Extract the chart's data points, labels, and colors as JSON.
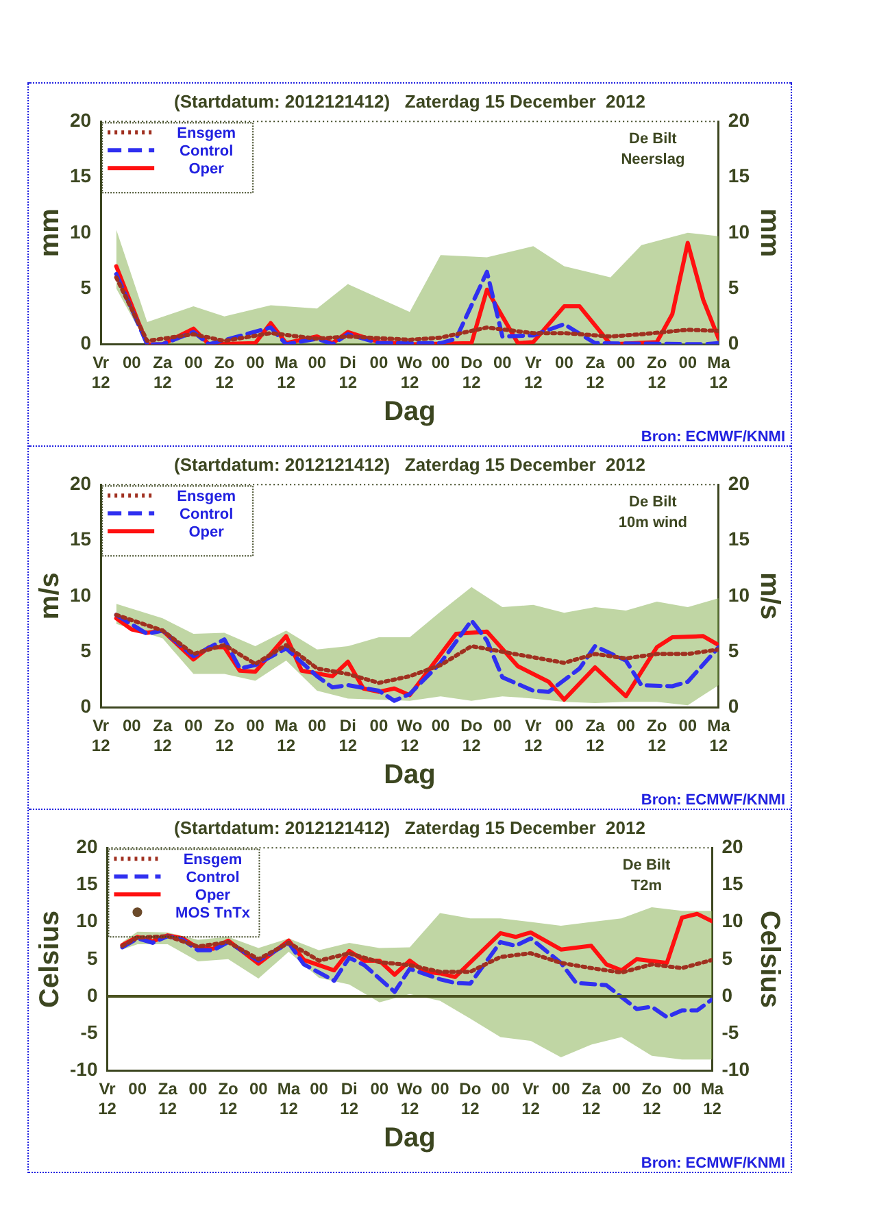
{
  "chart_data": [
    {
      "type": "line",
      "title": "(Startdatum: 2012121412)   Zaterdag 15 December  2012",
      "xlabel": "Dag",
      "ylabel": "mm",
      "y2label": "mm",
      "annotations": [
        "De Bilt",
        "Neerslag",
        "Bron: ECMWF/KNMI"
      ],
      "xlim": [
        "2012-12-14T12:00",
        "2012-12-24T12:00"
      ],
      "xticks": [
        {
          "value": "2012-12-14T12:00",
          "label": "Vr\n12"
        },
        {
          "value": "2012-12-15T00:00",
          "label": "00"
        },
        {
          "value": "2012-12-15T12:00",
          "label": "Za\n12"
        },
        {
          "value": "2012-12-16T00:00",
          "label": "00"
        },
        {
          "value": "2012-12-16T12:00",
          "label": "Zo\n12"
        },
        {
          "value": "2012-12-17T00:00",
          "label": "00"
        },
        {
          "value": "2012-12-17T12:00",
          "label": "Ma\n12"
        },
        {
          "value": "2012-12-18T00:00",
          "label": "00"
        },
        {
          "value": "2012-12-18T12:00",
          "label": "Di\n12"
        },
        {
          "value": "2012-12-19T00:00",
          "label": "00"
        },
        {
          "value": "2012-12-19T12:00",
          "label": "Wo\n12"
        },
        {
          "value": "2012-12-20T00:00",
          "label": "00"
        },
        {
          "value": "2012-12-20T12:00",
          "label": "Do\n12"
        },
        {
          "value": "2012-12-21T00:00",
          "label": "00"
        },
        {
          "value": "2012-12-21T12:00",
          "label": "Vr\n12"
        },
        {
          "value": "2012-12-22T00:00",
          "label": "00"
        },
        {
          "value": "2012-12-22T12:00",
          "label": "Za\n12"
        },
        {
          "value": "2012-12-23T00:00",
          "label": "00"
        },
        {
          "value": "2012-12-23T12:00",
          "label": "Zo\n12"
        },
        {
          "value": "2012-12-24T00:00",
          "label": "00"
        },
        {
          "value": "2012-12-24T12:00",
          "label": "Ma\n12"
        }
      ],
      "ylim": [
        0,
        20
      ],
      "yticks": [
        0,
        5,
        10,
        15,
        20
      ],
      "y2lim": [
        0,
        20
      ],
      "y2ticks": [
        0,
        5,
        10,
        15,
        20
      ],
      "grid": false,
      "legend": "top left",
      "series": [
        {
          "name": "Ensgem",
          "color": "#a03020",
          "line_style": "dotted",
          "marker": "none",
          "x": [
            "2012-12-14T18:00",
            "2012-12-15T06:00",
            "2012-12-16T00:00",
            "2012-12-16T12:00",
            "2012-12-17T06:00",
            "2012-12-18T00:00",
            "2012-12-18T12:00",
            "2012-12-19T12:00",
            "2012-12-20T00:00",
            "2012-12-20T18:00",
            "2012-12-21T12:00",
            "2012-12-22T00:00",
            "2012-12-22T18:00",
            "2012-12-23T06:00",
            "2012-12-24T00:00",
            "2012-12-24T12:00"
          ],
          "values": [
            6.0,
            0.3,
            0.9,
            0.3,
            1.0,
            0.5,
            0.7,
            0.4,
            0.6,
            1.5,
            1.0,
            1.0,
            0.7,
            0.9,
            1.3,
            1.2
          ],
          "lower": [
            5.0,
            0,
            0,
            0,
            0,
            0,
            0,
            0,
            0,
            0,
            0,
            0,
            0,
            0,
            0,
            0
          ],
          "upper": [
            10.3,
            2.0,
            3.4,
            2.5,
            3.5,
            3.2,
            5.4,
            2.9,
            8.0,
            7.8,
            8.8,
            7.0,
            6.0,
            8.9,
            10.0,
            9.7
          ]
        },
        {
          "name": "Control",
          "color": "#3030f0",
          "line_style": "dashed",
          "marker": "none",
          "x": [
            "2012-12-14T18:00",
            "2012-12-15T06:00",
            "2012-12-15T12:00",
            "2012-12-16T00:00",
            "2012-12-16T06:00",
            "2012-12-17T06:00",
            "2012-12-17T12:00",
            "2012-12-18T00:00",
            "2012-12-18T06:00",
            "2012-12-18T12:00",
            "2012-12-19T00:00",
            "2012-12-20T00:00",
            "2012-12-20T06:00",
            "2012-12-20T18:00",
            "2012-12-21T00:00",
            "2012-12-21T12:00",
            "2012-12-22T00:00",
            "2012-12-22T12:00",
            "2012-12-24T06:00",
            "2012-12-24T12:00"
          ],
          "values": [
            6.3,
            0,
            0,
            1.1,
            0,
            1.5,
            0,
            0.5,
            0,
            0.9,
            0.1,
            0.1,
            0.5,
            6.5,
            0.7,
            0.8,
            1.8,
            0.1,
            0,
            0.1
          ]
        },
        {
          "name": "Oper",
          "color": "#ff1010",
          "line_style": "solid",
          "marker": "none",
          "x": [
            "2012-12-14T18:00",
            "2012-12-15T06:00",
            "2012-12-15T12:00",
            "2012-12-16T00:00",
            "2012-12-16T06:00",
            "2012-12-17T00:00",
            "2012-12-17T06:00",
            "2012-12-17T12:00",
            "2012-12-18T00:00",
            "2012-12-18T06:00",
            "2012-12-18T12:00",
            "2012-12-19T00:00",
            "2012-12-19T06:00",
            "2012-12-19T12:00",
            "2012-12-20T12:00",
            "2012-12-20T18:00",
            "2012-12-21T06:00",
            "2012-12-21T12:00",
            "2012-12-22T00:00",
            "2012-12-22T06:00",
            "2012-12-22T18:00",
            "2012-12-23T12:00",
            "2012-12-23T18:00",
            "2012-12-24T00:00",
            "2012-12-24T06:00",
            "2012-12-24T12:00"
          ],
          "values": [
            7.0,
            0,
            0,
            1.4,
            0,
            0.1,
            1.9,
            0.1,
            0.7,
            0.1,
            1.1,
            0.2,
            0.1,
            0,
            0.1,
            4.9,
            0.1,
            0.2,
            3.4,
            3.4,
            0,
            0.2,
            2.7,
            9.1,
            4.0,
            0.5
          ]
        }
      ]
    },
    {
      "type": "line",
      "title": "(Startdatum: 2012121412)   Zaterdag 15 December  2012",
      "xlabel": "Dag",
      "ylabel": "m/s",
      "y2label": "m/s",
      "annotations": [
        "De Bilt",
        "10m wind",
        "Bron: ECMWF/KNMI"
      ],
      "xlim": [
        "2012-12-14T12:00",
        "2012-12-24T12:00"
      ],
      "xticks": [
        {
          "value": "2012-12-14T12:00",
          "label": "Vr\n12"
        },
        {
          "value": "2012-12-15T00:00",
          "label": "00"
        },
        {
          "value": "2012-12-15T12:00",
          "label": "Za\n12"
        },
        {
          "value": "2012-12-16T00:00",
          "label": "00"
        },
        {
          "value": "2012-12-16T12:00",
          "label": "Zo\n12"
        },
        {
          "value": "2012-12-17T00:00",
          "label": "00"
        },
        {
          "value": "2012-12-17T12:00",
          "label": "Ma\n12"
        },
        {
          "value": "2012-12-18T00:00",
          "label": "00"
        },
        {
          "value": "2012-12-18T12:00",
          "label": "Di\n12"
        },
        {
          "value": "2012-12-19T00:00",
          "label": "00"
        },
        {
          "value": "2012-12-19T12:00",
          "label": "Wo\n12"
        },
        {
          "value": "2012-12-20T00:00",
          "label": "00"
        },
        {
          "value": "2012-12-20T12:00",
          "label": "Do\n12"
        },
        {
          "value": "2012-12-21T00:00",
          "label": "00"
        },
        {
          "value": "2012-12-21T12:00",
          "label": "Vr\n12"
        },
        {
          "value": "2012-12-22T00:00",
          "label": "00"
        },
        {
          "value": "2012-12-22T12:00",
          "label": "Za\n12"
        },
        {
          "value": "2012-12-23T00:00",
          "label": "00"
        },
        {
          "value": "2012-12-23T12:00",
          "label": "Zo\n12"
        },
        {
          "value": "2012-12-24T00:00",
          "label": "00"
        },
        {
          "value": "2012-12-24T12:00",
          "label": "Ma\n12"
        }
      ],
      "ylim": [
        0,
        20
      ],
      "yticks": [
        0,
        5,
        10,
        15,
        20
      ],
      "y2lim": [
        0,
        20
      ],
      "y2ticks": [
        0,
        5,
        10,
        15,
        20
      ],
      "grid": false,
      "legend": "top left",
      "series": [
        {
          "name": "Ensgem",
          "color": "#a03020",
          "line_style": "dotted",
          "marker": "none",
          "x": [
            "2012-12-14T18:00",
            "2012-12-15T12:00",
            "2012-12-16T00:00",
            "2012-12-16T12:00",
            "2012-12-17T00:00",
            "2012-12-17T12:00",
            "2012-12-18T00:00",
            "2012-12-18T12:00",
            "2012-12-19T00:00",
            "2012-12-19T12:00",
            "2012-12-20T00:00",
            "2012-12-20T12:00",
            "2012-12-21T00:00",
            "2012-12-21T12:00",
            "2012-12-22T00:00",
            "2012-12-22T12:00",
            "2012-12-23T00:00",
            "2012-12-23T12:00",
            "2012-12-24T00:00",
            "2012-12-24T12:00"
          ],
          "values": [
            8.3,
            6.9,
            4.8,
            5.6,
            3.9,
            5.6,
            3.5,
            3.0,
            2.2,
            2.8,
            3.8,
            5.5,
            5.0,
            4.5,
            4.0,
            4.8,
            4.4,
            4.8,
            4.8,
            5.2
          ],
          "lower": [
            7.5,
            6.2,
            3.0,
            3.0,
            2.4,
            4.2,
            1.5,
            0.8,
            0.7,
            0.6,
            1.0,
            0.6,
            1.0,
            0.8,
            0.5,
            0.4,
            0.5,
            0.5,
            0.2,
            2.0
          ],
          "upper": [
            9.3,
            8.0,
            6.6,
            6.7,
            5.5,
            6.9,
            5.2,
            5.5,
            6.3,
            6.3,
            8.6,
            10.8,
            9.0,
            9.2,
            8.5,
            9.0,
            8.7,
            9.5,
            9.0,
            9.8
          ]
        },
        {
          "name": "Control",
          "color": "#3030f0",
          "line_style": "dashed",
          "marker": "none",
          "x": [
            "2012-12-14T18:00",
            "2012-12-15T06:00",
            "2012-12-15T12:00",
            "2012-12-16T00:00",
            "2012-12-16T12:00",
            "2012-12-16T18:00",
            "2012-12-17T00:00",
            "2012-12-17T12:00",
            "2012-12-18T00:00",
            "2012-12-18T06:00",
            "2012-12-18T12:00",
            "2012-12-19T00:00",
            "2012-12-19T06:00",
            "2012-12-19T12:00",
            "2012-12-20T00:00",
            "2012-12-20T12:00",
            "2012-12-20T18:00",
            "2012-12-21T00:00",
            "2012-12-21T12:00",
            "2012-12-21T18:00",
            "2012-12-22T06:00",
            "2012-12-22T12:00",
            "2012-12-23T00:00",
            "2012-12-23T06:00",
            "2012-12-23T18:00",
            "2012-12-24T00:00",
            "2012-12-24T12:00"
          ],
          "values": [
            8.3,
            6.6,
            6.9,
            4.6,
            6.1,
            3.5,
            3.8,
            5.3,
            2.8,
            1.8,
            2.0,
            1.5,
            0.6,
            1.2,
            4.0,
            7.8,
            6.0,
            2.7,
            1.5,
            1.4,
            3.5,
            5.5,
            4.2,
            2.0,
            1.9,
            2.3,
            5.4
          ]
        },
        {
          "name": "Oper",
          "color": "#ff1010",
          "line_style": "solid",
          "marker": "none",
          "x": [
            "2012-12-14T18:00",
            "2012-12-15T00:00",
            "2012-12-15T06:00",
            "2012-12-15T12:00",
            "2012-12-16T00:00",
            "2012-12-16T06:00",
            "2012-12-16T12:00",
            "2012-12-16T18:00",
            "2012-12-17T00:00",
            "2012-12-17T12:00",
            "2012-12-17T18:00",
            "2012-12-18T06:00",
            "2012-12-18T12:00",
            "2012-12-18T18:00",
            "2012-12-19T00:00",
            "2012-12-19T06:00",
            "2012-12-19T12:00",
            "2012-12-20T06:00",
            "2012-12-20T18:00",
            "2012-12-21T06:00",
            "2012-12-21T18:00",
            "2012-12-22T00:00",
            "2012-12-22T12:00",
            "2012-12-23T00:00",
            "2012-12-23T12:00",
            "2012-12-23T18:00",
            "2012-12-24T06:00",
            "2012-12-24T12:00"
          ],
          "values": [
            8.0,
            7.0,
            6.7,
            6.9,
            4.3,
            5.4,
            5.4,
            3.3,
            3.2,
            6.4,
            3.3,
            2.8,
            4.1,
            1.7,
            1.4,
            1.7,
            1.1,
            6.6,
            6.8,
            3.7,
            2.3,
            0.7,
            3.6,
            1.0,
            5.4,
            6.3,
            6.4,
            5.6
          ]
        }
      ]
    },
    {
      "type": "line",
      "title": "(Startdatum: 2012121412)   Zaterdag 15 December  2012",
      "xlabel": "Dag",
      "ylabel": "Celsius",
      "y2label": "Celsius",
      "annotations": [
        "De Bilt",
        "T2m",
        "Bron: ECMWF/KNMI"
      ],
      "xlim": [
        "2012-12-14T12:00",
        "2012-12-24T12:00"
      ],
      "xticks": [
        {
          "value": "2012-12-14T12:00",
          "label": "Vr\n12"
        },
        {
          "value": "2012-12-15T00:00",
          "label": "00"
        },
        {
          "value": "2012-12-15T12:00",
          "label": "Za\n12"
        },
        {
          "value": "2012-12-16T00:00",
          "label": "00"
        },
        {
          "value": "2012-12-16T12:00",
          "label": "Zo\n12"
        },
        {
          "value": "2012-12-17T00:00",
          "label": "00"
        },
        {
          "value": "2012-12-17T12:00",
          "label": "Ma\n12"
        },
        {
          "value": "2012-12-18T00:00",
          "label": "00"
        },
        {
          "value": "2012-12-18T12:00",
          "label": "Di\n12"
        },
        {
          "value": "2012-12-19T00:00",
          "label": "00"
        },
        {
          "value": "2012-12-19T12:00",
          "label": "Wo\n12"
        },
        {
          "value": "2012-12-20T00:00",
          "label": "00"
        },
        {
          "value": "2012-12-20T12:00",
          "label": "Do\n12"
        },
        {
          "value": "2012-12-21T00:00",
          "label": "00"
        },
        {
          "value": "2012-12-21T12:00",
          "label": "Vr\n12"
        },
        {
          "value": "2012-12-22T00:00",
          "label": "00"
        },
        {
          "value": "2012-12-22T12:00",
          "label": "Za\n12"
        },
        {
          "value": "2012-12-23T00:00",
          "label": "00"
        },
        {
          "value": "2012-12-23T12:00",
          "label": "Zo\n12"
        },
        {
          "value": "2012-12-24T00:00",
          "label": "00"
        },
        {
          "value": "2012-12-24T12:00",
          "label": "Ma\n12"
        }
      ],
      "ylim": [
        -10,
        20
      ],
      "yticks": [
        -10,
        -5,
        0,
        5,
        10,
        15,
        20
      ],
      "y2lim": [
        -10,
        20
      ],
      "y2ticks": [
        -10,
        -5,
        0,
        5,
        10,
        15,
        20
      ],
      "grid": false,
      "legend": "top left",
      "ref_lines": [
        {
          "axis": "y",
          "value": 0,
          "color": "#4b5320"
        }
      ],
      "series": [
        {
          "name": "Ensgem",
          "color": "#a03020",
          "line_style": "dotted",
          "marker": "none",
          "x": [
            "2012-12-14T18:00",
            "2012-12-15T00:00",
            "2012-12-15T12:00",
            "2012-12-16T00:00",
            "2012-12-16T12:00",
            "2012-12-17T00:00",
            "2012-12-17T12:00",
            "2012-12-18T00:00",
            "2012-12-18T12:00",
            "2012-12-19T00:00",
            "2012-12-19T12:00",
            "2012-12-20T00:00",
            "2012-12-20T12:00",
            "2012-12-21T00:00",
            "2012-12-21T12:00",
            "2012-12-22T00:00",
            "2012-12-22T12:00",
            "2012-12-23T00:00",
            "2012-12-23T12:00",
            "2012-12-24T00:00",
            "2012-12-24T12:00"
          ],
          "values": [
            6.8,
            7.9,
            8.1,
            6.7,
            7.3,
            5.0,
            7.2,
            4.8,
            5.8,
            4.6,
            4.2,
            3.3,
            3.3,
            5.3,
            5.8,
            4.5,
            3.8,
            3.2,
            4.3,
            3.8,
            4.9
          ],
          "lower": [
            6.3,
            7.0,
            7.0,
            4.7,
            5.0,
            2.4,
            6.0,
            2.5,
            1.6,
            -0.8,
            0.3,
            -0.6,
            -3.0,
            -5.5,
            -6.0,
            -8.2,
            -6.5,
            -5.5,
            -8.0,
            -8.5,
            -8.5
          ],
          "upper": [
            7.3,
            8.7,
            8.6,
            7.6,
            8.0,
            6.5,
            7.8,
            6.2,
            7.2,
            6.5,
            6.6,
            11.2,
            10.5,
            10.5,
            10.0,
            9.5,
            10.0,
            10.5,
            12.0,
            11.5,
            11.5
          ]
        },
        {
          "name": "Control",
          "color": "#3030f0",
          "line_style": "dashed",
          "marker": "none",
          "x": [
            "2012-12-14T18:00",
            "2012-12-15T00:00",
            "2012-12-15T06:00",
            "2012-12-15T12:00",
            "2012-12-15T18:00",
            "2012-12-16T00:00",
            "2012-12-16T06:00",
            "2012-12-16T12:00",
            "2012-12-17T00:00",
            "2012-12-17T12:00",
            "2012-12-17T18:00",
            "2012-12-18T06:00",
            "2012-12-18T12:00",
            "2012-12-18T18:00",
            "2012-12-19T06:00",
            "2012-12-19T12:00",
            "2012-12-20T00:00",
            "2012-12-20T06:00",
            "2012-12-20T12:00",
            "2012-12-21T00:00",
            "2012-12-21T06:00",
            "2012-12-21T12:00",
            "2012-12-22T00:00",
            "2012-12-22T06:00",
            "2012-12-22T18:00",
            "2012-12-23T06:00",
            "2012-12-23T12:00",
            "2012-12-23T18:00",
            "2012-12-24T00:00",
            "2012-12-24T06:00",
            "2012-12-24T12:00"
          ],
          "values": [
            6.6,
            7.8,
            7.2,
            8.1,
            7.6,
            6.2,
            6.2,
            7.3,
            4.8,
            7.2,
            4.3,
            2.1,
            5.2,
            4.2,
            0.6,
            3.7,
            2.3,
            1.8,
            1.7,
            7.3,
            6.8,
            7.8,
            4.5,
            1.8,
            1.5,
            -1.7,
            -1.4,
            -2.8,
            -1.9,
            -1.9,
            -0.4
          ]
        },
        {
          "name": "Oper",
          "color": "#ff1010",
          "line_style": "solid",
          "marker": "none",
          "x": [
            "2012-12-14T18:00",
            "2012-12-15T00:00",
            "2012-12-15T06:00",
            "2012-12-15T12:00",
            "2012-12-15T18:00",
            "2012-12-16T00:00",
            "2012-12-16T06:00",
            "2012-12-16T12:00",
            "2012-12-17T00:00",
            "2012-12-17T12:00",
            "2012-12-17T18:00",
            "2012-12-18T06:00",
            "2012-12-18T12:00",
            "2012-12-18T18:00",
            "2012-12-19T00:00",
            "2012-12-19T06:00",
            "2012-12-19T12:00",
            "2012-12-19T18:00",
            "2012-12-20T00:00",
            "2012-12-20T06:00",
            "2012-12-21T00:00",
            "2012-12-21T06:00",
            "2012-12-21T12:00",
            "2012-12-22T00:00",
            "2012-12-22T12:00",
            "2012-12-22T18:00",
            "2012-12-23T00:00",
            "2012-12-23T06:00",
            "2012-12-23T18:00",
            "2012-12-24T00:00",
            "2012-12-24T06:00",
            "2012-12-24T12:00"
          ],
          "values": [
            6.9,
            8.0,
            7.4,
            8.2,
            7.8,
            6.5,
            6.4,
            7.5,
            4.4,
            7.5,
            4.9,
            3.5,
            6.1,
            4.8,
            4.8,
            2.9,
            4.8,
            3.3,
            3.1,
            2.6,
            8.5,
            8.0,
            8.6,
            6.3,
            6.8,
            4.3,
            3.5,
            5.0,
            4.5,
            10.6,
            11.1,
            10.1
          ]
        },
        {
          "name": "MOS TnTx",
          "type": "scatter",
          "color": "#6b4a2a",
          "marker": "circle"
        }
      ]
    }
  ]
}
